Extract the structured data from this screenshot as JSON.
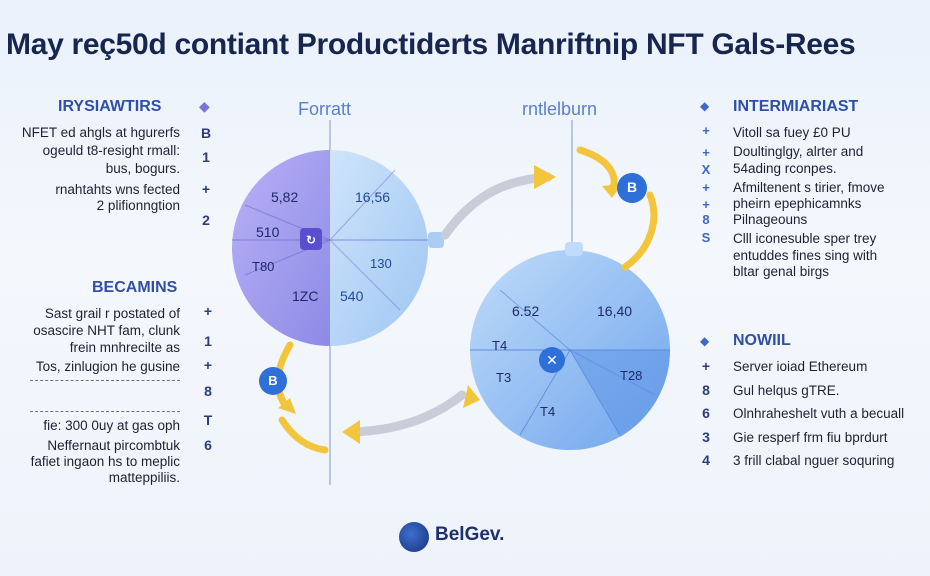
{
  "title": "May reç50d contiant Productiderts Manriftnip NFT Gals-Rees",
  "left_column": {
    "header": "IRYSIAWTIRS",
    "lines": [
      "NFET ed ahgls at hgurerfs",
      "ogeuld t8-resight rmall:",
      "bus, bogurs.",
      "rnahtahts wns fected",
      "2 plifionngtion"
    ],
    "marks": [
      "B",
      "1",
      "+",
      "2"
    ],
    "section2_header": "BECAMINS",
    "section2_lines": [
      "Sast grail r postated of",
      "osascire NHT fam, clunk",
      "frein mnhrecilte as",
      "Tos, zinlugion he gusine",
      "",
      "fie: 300 0uy at gas oph",
      "Neffernaut pircombtuk",
      "fafiet ingaon hs to meplic",
      "matteppiliis."
    ],
    "section2_marks": [
      "+",
      "1",
      "+",
      "8",
      "T",
      "6"
    ]
  },
  "center": {
    "label_left": "Forratt",
    "label_right": "rntlelburn",
    "circle_left_values": [
      "5,82",
      "510",
      "1ZC",
      "T80",
      "16,56",
      "540",
      "130"
    ],
    "circle_right_values": [
      "6.52",
      "16,40",
      "T4",
      "T3",
      "T4",
      "T28"
    ],
    "badge_top": "B",
    "badge_bottom": "B"
  },
  "right_column": {
    "header": "INTERMIARIAST",
    "lines": [
      "Vitoll sa fuey £0 PU",
      "Doultinglgy, alrter and",
      "54ading rconpes.",
      "Afmiltenent s tirier, fmove",
      "pheirn epephicamnks",
      "Pilnageouns",
      "Clll iconesuble sper trey",
      "entuddes fines sing with",
      "bltar genal birgs"
    ],
    "marks": [
      "+",
      "+",
      "X",
      "+",
      "+",
      "8",
      "S"
    ],
    "section2_header": "NOWIIL",
    "section2_lines": [
      "Server ioiad Ethereum",
      "Gul helqus gTRE.",
      "Olnhraheshelt vuth a becuall",
      "Gie resperf frm fiu bprdurt",
      "3 frill clabal nguer soquring"
    ],
    "section2_marks": [
      "+",
      "8",
      "6",
      "3",
      "4"
    ]
  },
  "footer": {
    "brand": "BelGev."
  },
  "colors": {
    "title": "#17264f",
    "accent_blue": "#2f4fa8",
    "purple_fill": "#9d9cf0",
    "blue_fill": "#a9cdf4",
    "arrow_yellow": "#f2c53d",
    "badge_blue": "#2f6fd8"
  }
}
